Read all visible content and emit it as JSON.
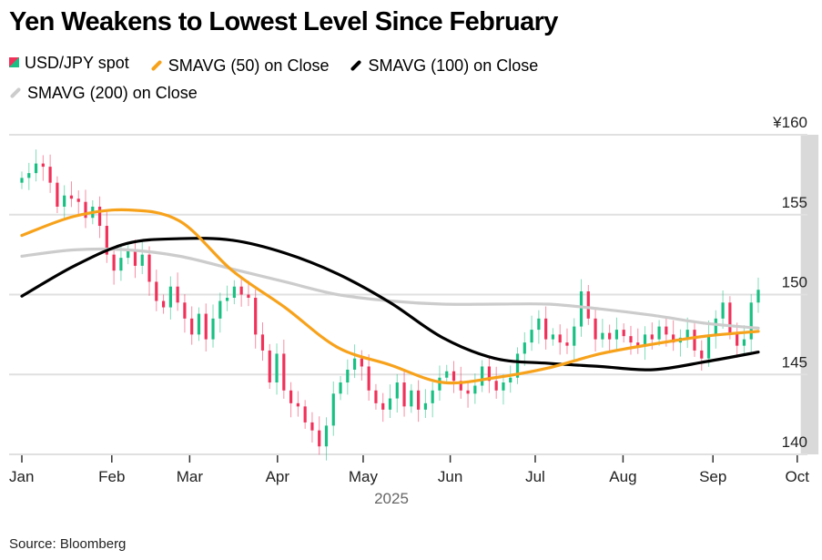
{
  "title": "Yen Weakens to Lowest Level Since February",
  "source": "Source: Bloomberg",
  "colors": {
    "up": "#19c083",
    "down": "#f0325a",
    "sma50": "#f7a21b",
    "sma100": "#000000",
    "sma200": "#cccccc",
    "grid": "#e0e0e0",
    "highlight": "#d9d9d9"
  },
  "legend": [
    {
      "label": "USD/JPY spot",
      "icon": "candle-icon"
    },
    {
      "label": "SMAVG (50) on Close",
      "icon": "line-icon",
      "color": "#f7a21b"
    },
    {
      "label": "SMAVG (100) on Close",
      "icon": "line-icon",
      "color": "#000000"
    },
    {
      "label": "SMAVG (200) on Close",
      "icon": "line-icon",
      "color": "#cccccc"
    }
  ],
  "chart_data": {
    "type": "candlestick-line",
    "title": "Yen Weakens to Lowest Level Since February",
    "ylim": [
      140,
      160
    ],
    "y_ticks": [
      140,
      145,
      150,
      155,
      160
    ],
    "y_tick_labels": [
      "140",
      "145",
      "150",
      "155",
      "¥160"
    ],
    "x_tick_labels": [
      "Jan",
      "Feb",
      "Mar",
      "Apr",
      "May",
      "Jun",
      "Jul",
      "Aug",
      "Sep",
      "Oct"
    ],
    "x_tick_index": [
      0,
      12.7,
      23.7,
      36.1,
      48.2,
      60.5,
      72.5,
      84.9,
      97.6,
      109.5
    ],
    "year_label": "2025",
    "grid": true,
    "highlight_index_range": [
      110,
      112.5
    ],
    "spot_closes": [
      157.3,
      157.6,
      158.2,
      158.0,
      157.0,
      155.5,
      156.2,
      156.0,
      155.8,
      154.8,
      155.5,
      154.3,
      152.5,
      151.5,
      152.3,
      152.8,
      151.8,
      152.5,
      150.8,
      149.6,
      149.2,
      150.5,
      149.5,
      148.5,
      147.5,
      148.8,
      147.2,
      148.5,
      149.6,
      149.8,
      150.5,
      150.0,
      149.8,
      147.5,
      146.5,
      144.5,
      146.3,
      144.0,
      143.2,
      143.0,
      142.0,
      141.5,
      140.5,
      141.8,
      143.8,
      144.5,
      145.3,
      146.0,
      145.5,
      144.0,
      143.2,
      142.8,
      143.5,
      144.5,
      143.0,
      144.0,
      142.8,
      143.2,
      144.0,
      144.8,
      145.2,
      144.6,
      144.0,
      143.8,
      144.3,
      145.5,
      144.6,
      144.0,
      144.5,
      144.8,
      146.3,
      147.0,
      147.8,
      148.5,
      147.2,
      147.5,
      147.0,
      146.8,
      148.0,
      150.2,
      148.5,
      147.2,
      147.6,
      147.2,
      147.8,
      147.4,
      147.0,
      146.8,
      147.5,
      147.2,
      148.0,
      147.5,
      147.0,
      147.3,
      147.8,
      146.5,
      146.0,
      147.5,
      148.5,
      149.5,
      147.6,
      146.8,
      147.2,
      149.5,
      150.3
    ],
    "series": [
      {
        "name": "SMAVG (50) on Close",
        "values": [
          153.7,
          154.9,
          155.3,
          154.6,
          151.5,
          149.2,
          146.7,
          145.6,
          144.5,
          144.8,
          145.4,
          146.3,
          146.9,
          147.4,
          147.7
        ]
      },
      {
        "name": "SMAVG (100) on Close",
        "values": [
          149.9,
          151.8,
          153.2,
          153.5,
          153.4,
          152.6,
          151.3,
          149.5,
          147.3,
          146.0,
          145.7,
          145.5,
          145.3,
          145.8,
          146.4
        ]
      },
      {
        "name": "SMAVG (200) on Close",
        "values": [
          152.4,
          152.8,
          152.8,
          152.4,
          151.6,
          150.8,
          150.0,
          149.6,
          149.4,
          149.4,
          149.4,
          149.1,
          148.7,
          148.2,
          147.9
        ]
      }
    ]
  }
}
